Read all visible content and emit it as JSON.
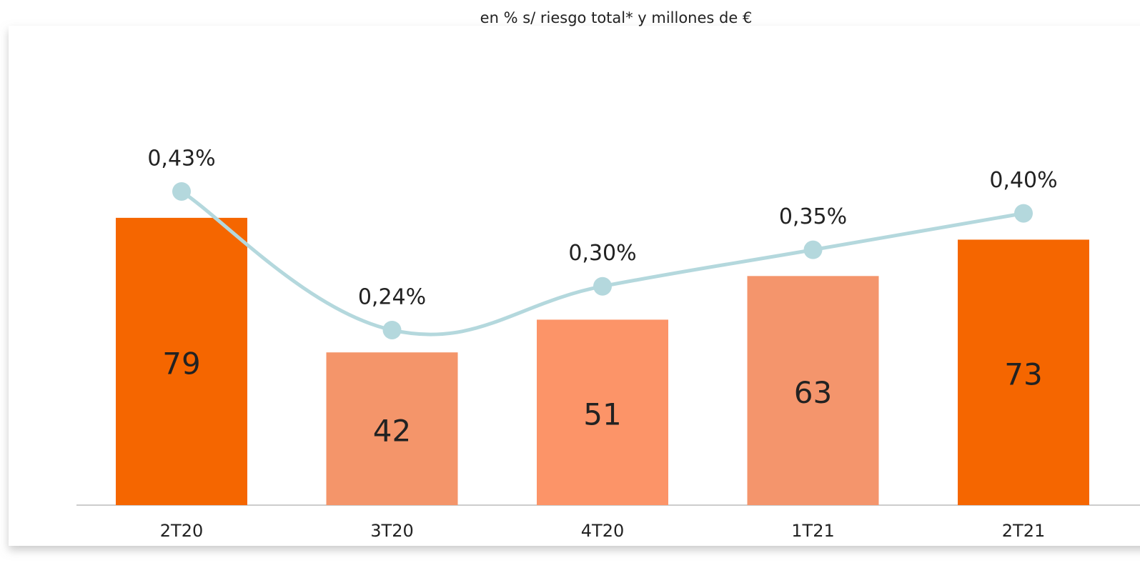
{
  "chart_data": {
    "type": "bar",
    "subtitle": "en % s/ riesgo total* y millones de €",
    "categories": [
      "2T20",
      "3T20",
      "4T20",
      "1T21",
      "2T21"
    ],
    "series": [
      {
        "type": "bar",
        "values": [
          79,
          42,
          51,
          63,
          73
        ],
        "colors": [
          "#f56600",
          "#f4956a",
          "#fc9468",
          "#f4956c",
          "#f56600"
        ]
      },
      {
        "type": "line",
        "values": [
          0.43,
          0.24,
          0.3,
          0.35,
          0.4
        ],
        "value_labels": [
          "0,43%",
          "0,24%",
          "0,30%",
          "0,35%",
          "0,40%"
        ],
        "color": "#b4d8dd"
      }
    ]
  }
}
